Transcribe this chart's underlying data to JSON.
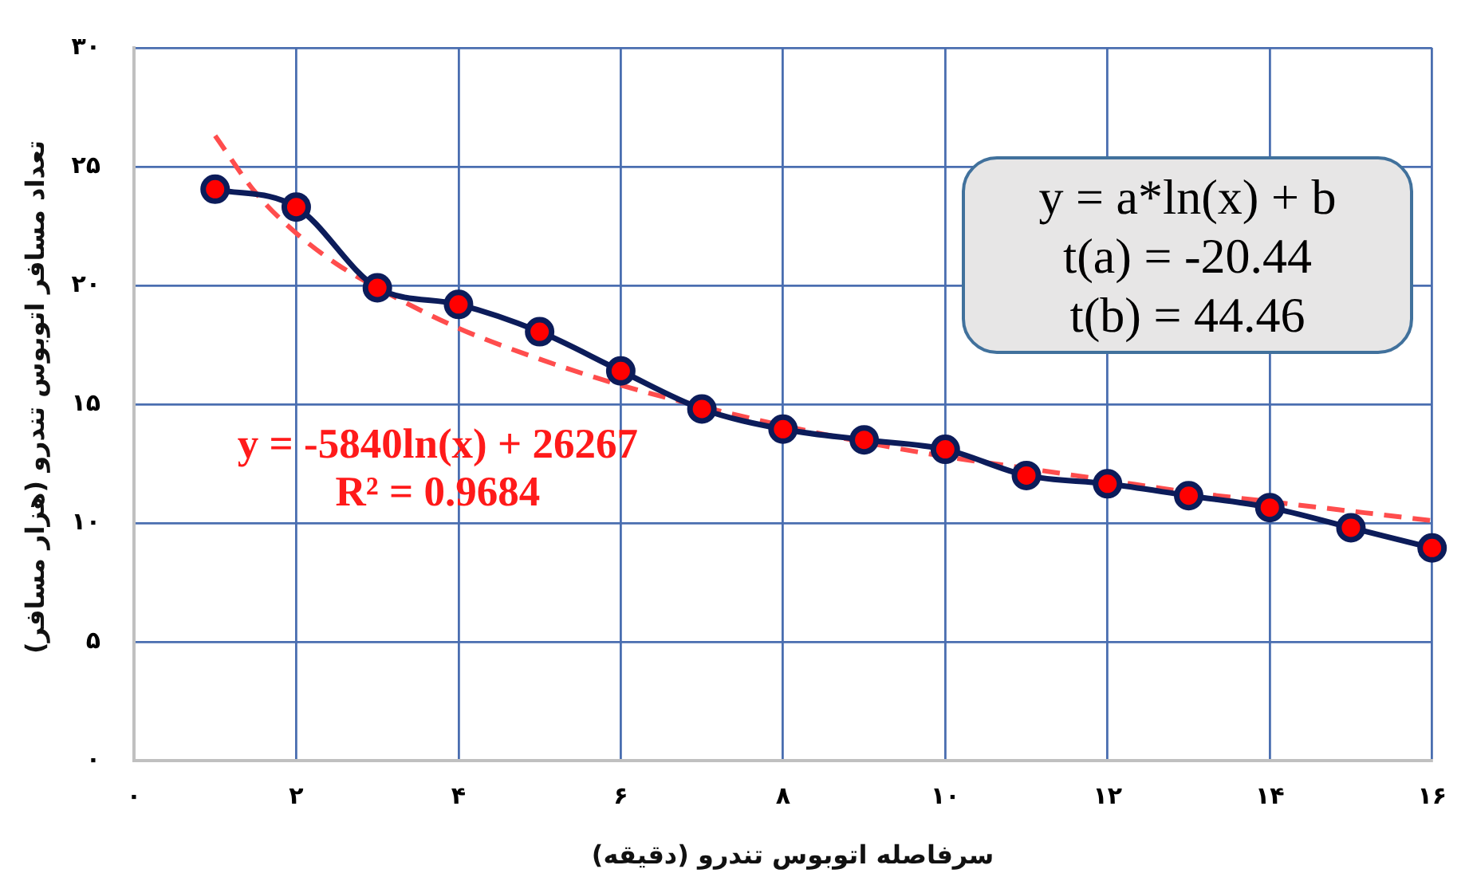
{
  "chart_data": {
    "type": "line",
    "xlabel": "سرفاصله اتوبوس تندرو (دقیقه)",
    "ylabel": "تعداد مسافر اتوبوس تندرو (هزار مسافر)",
    "x": [
      1,
      2,
      3,
      4,
      5,
      6,
      7,
      8,
      9,
      10,
      11,
      12,
      13,
      14,
      15,
      16
    ],
    "xlim": [
      0,
      16
    ],
    "xticks": [
      {
        "value": 0,
        "label": "۰"
      },
      {
        "value": 2,
        "label": "۲"
      },
      {
        "value": 4,
        "label": "۴"
      },
      {
        "value": 6,
        "label": "۶"
      },
      {
        "value": 8,
        "label": "۸"
      },
      {
        "value": 10,
        "label": "۱۰"
      },
      {
        "value": 12,
        "label": "۱۲"
      },
      {
        "value": 14,
        "label": "۱۴"
      },
      {
        "value": 16,
        "label": "۱۶"
      }
    ],
    "ylim": [
      0,
      30
    ],
    "yticks": [
      {
        "value": 0,
        "label": "۰"
      },
      {
        "value": 5,
        "label": "۵"
      },
      {
        "value": 10,
        "label": "۱۰"
      },
      {
        "value": 15,
        "label": "۱۵"
      },
      {
        "value": 20,
        "label": "۲۰"
      },
      {
        "value": 25,
        "label": "۲۵"
      },
      {
        "value": 30,
        "label": "۳۰"
      }
    ],
    "grid": true,
    "series": [
      {
        "color": "#0c1c5a",
        "marker": "circle",
        "line_style": "solid",
        "values": [
          24.05,
          23.3,
          19.9,
          19.2,
          18.05,
          16.4,
          14.8,
          13.95,
          13.5,
          13.1,
          12.0,
          11.65,
          11.15,
          10.65,
          9.8,
          8.95
        ]
      },
      {
        "type": "line",
        "color": "#ff4d4d",
        "marker": "none",
        "line_style": "dashed",
        "x": [
          1,
          1.5,
          2,
          2.5,
          3,
          4,
          5,
          6,
          7,
          8,
          9,
          10,
          11,
          12,
          13,
          14,
          15,
          16
        ],
        "values": [
          26.3,
          23.9,
          22.2,
          20.9,
          19.9,
          18.2,
          16.9,
          15.8,
          14.9,
          14.1,
          13.4,
          12.8,
          12.3,
          11.8,
          11.3,
          10.9,
          10.5,
          10.1
        ]
      }
    ],
    "annotations": [
      "y = -5840ln(x) + 26267\nR² = 0.9684",
      "y = a*ln(x) + b\nt(a) = -20.44\nt(b) = 44.46"
    ]
  }
}
